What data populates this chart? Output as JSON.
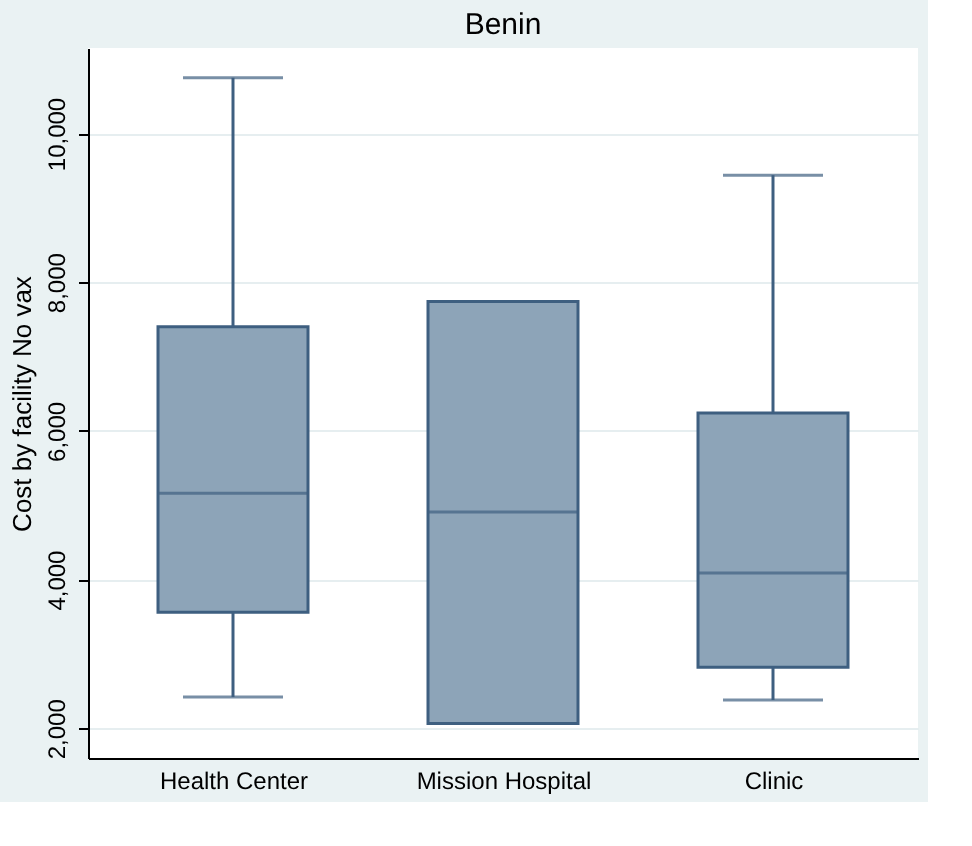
{
  "chart_data": {
    "type": "box",
    "title": "Benin",
    "ylabel": "Cost by facility No vax",
    "categories": [
      "Health Center",
      "Mission Hospital",
      "Clinic"
    ],
    "boxes": [
      {
        "low": 2420,
        "q1": 3560,
        "median": 5160,
        "q3": 7400,
        "high": 10750
      },
      {
        "low": 2065,
        "q1": 2065,
        "median": 4910,
        "q3": 7740,
        "high": 7740
      },
      {
        "low": 2380,
        "q1": 2820,
        "median": 4090,
        "q3": 6240,
        "high": 9440
      }
    ],
    "color": "#8da4b8",
    "ylim": [
      1600,
      11150
    ],
    "yticks": [
      {
        "value": 2000,
        "label": "2,000"
      },
      {
        "value": 4000,
        "label": "4,000"
      },
      {
        "value": 6000,
        "label": "6,000"
      },
      {
        "value": 8000,
        "label": "8,000"
      },
      {
        "value": 10000,
        "label": "10,000"
      }
    ],
    "grid": "y"
  }
}
